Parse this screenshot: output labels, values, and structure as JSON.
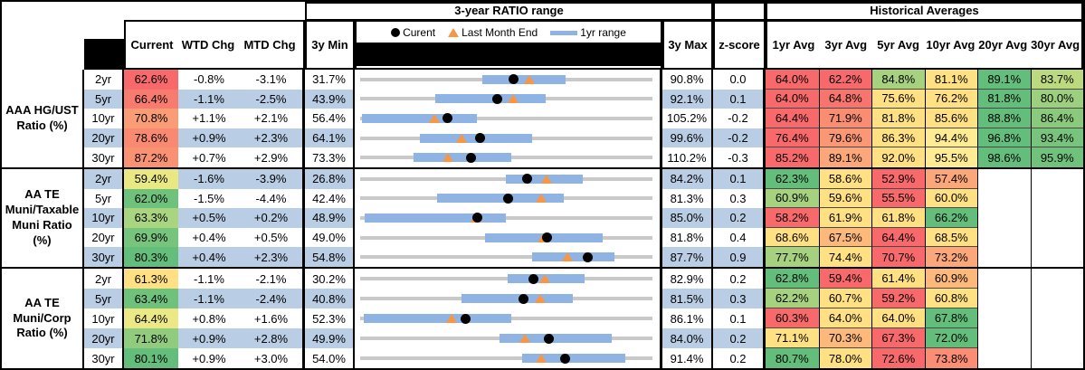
{
  "title_bars": {
    "range": "3-year RATIO range",
    "historical": "Historical Averages"
  },
  "columns": {
    "value": [
      "Current",
      "WTD Chg",
      "MTD Chg"
    ],
    "min": "3y Min",
    "max": "3y Max",
    "zscore": "z-score",
    "avgs": [
      "1yr Avg",
      "3yr Avg",
      "5yr Avg",
      "10yr Avg",
      "20yr Avg",
      "30yr Avg"
    ]
  },
  "legend": {
    "current": "Curent",
    "last_month": "Last Month End",
    "range": "1yr range"
  },
  "colors": {
    "stripe_blue": "#B9CDE5",
    "range_bar_blue": "#8FB4E3",
    "baseline_gray": "#C9C9C9",
    "triangle_orange": "#F79646",
    "dot_black": "#000000",
    "scale_red": "#F8696B",
    "scale_yellow": "#FFE083",
    "scale_green": "#63BE7B"
  },
  "groups": [
    {
      "label": "AAA HG/UST Ratio (%)",
      "rows": [
        {
          "tenor": "2yr",
          "current": {
            "text": "62.6%",
            "color": "#F8696B"
          },
          "wtd": "-0.8%",
          "mtd": "-3.1%",
          "min": "31.7%",
          "max": "90.8%",
          "z": "0.0",
          "avgs": [
            {
              "text": "64.0%",
              "color": "#F8696B"
            },
            {
              "text": "62.2%",
              "color": "#F8696B"
            },
            {
              "text": "84.8%",
              "color": "#A6D17F"
            },
            {
              "text": "81.1%",
              "color": "#FFE083"
            },
            {
              "text": "89.1%",
              "color": "#63BE7B"
            },
            {
              "text": "83.7%",
              "color": "#BCD97F"
            }
          ]
        },
        {
          "tenor": "5yr",
          "current": {
            "text": "66.4%",
            "color": "#F87B6F"
          },
          "wtd": "-1.1%",
          "mtd": "-2.5%",
          "min": "43.9%",
          "max": "92.1%",
          "z": "0.1",
          "avgs": [
            {
              "text": "64.0%",
              "color": "#F8696B"
            },
            {
              "text": "64.8%",
              "color": "#F8746E"
            },
            {
              "text": "75.6%",
              "color": "#FFE083"
            },
            {
              "text": "76.2%",
              "color": "#FFE083"
            },
            {
              "text": "81.8%",
              "color": "#63BE7B"
            },
            {
              "text": "80.0%",
              "color": "#9DD07E"
            }
          ]
        },
        {
          "tenor": "10yr",
          "current": {
            "text": "70.8%",
            "color": "#FA9C76"
          },
          "wtd": "+1.1%",
          "mtd": "+2.1%",
          "min": "56.4%",
          "max": "105.2%",
          "z": "-0.2",
          "avgs": [
            {
              "text": "64.4%",
              "color": "#F8696B"
            },
            {
              "text": "71.9%",
              "color": "#F98D72"
            },
            {
              "text": "81.8%",
              "color": "#FFE083"
            },
            {
              "text": "85.6%",
              "color": "#FFE083"
            },
            {
              "text": "88.8%",
              "color": "#63BE7B"
            },
            {
              "text": "86.4%",
              "color": "#8BCA7D"
            }
          ]
        },
        {
          "tenor": "20yr",
          "current": {
            "text": "78.6%",
            "color": "#F98A71"
          },
          "wtd": "+0.9%",
          "mtd": "+2.3%",
          "min": "64.1%",
          "max": "99.6%",
          "z": "-0.2",
          "avgs": [
            {
              "text": "76.4%",
              "color": "#F8696B"
            },
            {
              "text": "79.6%",
              "color": "#FA9876"
            },
            {
              "text": "86.3%",
              "color": "#FFE083"
            },
            {
              "text": "94.4%",
              "color": "#FFEB94"
            },
            {
              "text": "96.8%",
              "color": "#63BE7B"
            },
            {
              "text": "93.4%",
              "color": "#78C47C"
            }
          ]
        },
        {
          "tenor": "30yr",
          "current": {
            "text": "87.2%",
            "color": "#F99173"
          },
          "wtd": "+0.7%",
          "mtd": "+2.9%",
          "min": "73.3%",
          "max": "110.2%",
          "z": "-0.3",
          "avgs": [
            {
              "text": "85.2%",
              "color": "#F8696B"
            },
            {
              "text": "89.1%",
              "color": "#FBA77A"
            },
            {
              "text": "92.0%",
              "color": "#FFE083"
            },
            {
              "text": "95.5%",
              "color": "#FFEB94"
            },
            {
              "text": "98.6%",
              "color": "#63BE7B"
            },
            {
              "text": "95.9%",
              "color": "#70C17B"
            }
          ]
        }
      ]
    },
    {
      "label": "AA TE Muni/Taxable Muni Ratio (%)",
      "rows": [
        {
          "tenor": "2yr",
          "current": {
            "text": "59.4%",
            "color": "#E9E883"
          },
          "wtd": "-1.6%",
          "mtd": "-3.9%",
          "min": "26.8%",
          "max": "84.2%",
          "z": "0.1",
          "avgs": [
            {
              "text": "62.3%",
              "color": "#63BE7B"
            },
            {
              "text": "58.6%",
              "color": "#FFE083"
            },
            {
              "text": "52.9%",
              "color": "#F8696B"
            },
            {
              "text": "57.4%",
              "color": "#FBA77A"
            },
            null,
            null
          ]
        },
        {
          "tenor": "5yr",
          "current": {
            "text": "62.0%",
            "color": "#6EC27C"
          },
          "wtd": "-1.5%",
          "mtd": "-4.4%",
          "min": "42.4%",
          "max": "81.3%",
          "z": "0.3",
          "avgs": [
            {
              "text": "60.9%",
              "color": "#A6D17F"
            },
            {
              "text": "59.6%",
              "color": "#FFE083"
            },
            {
              "text": "55.5%",
              "color": "#F8696B"
            },
            {
              "text": "60.0%",
              "color": "#FFE083"
            },
            null,
            null
          ]
        },
        {
          "tenor": "10yr",
          "current": {
            "text": "63.3%",
            "color": "#AAD580"
          },
          "wtd": "+0.5%",
          "mtd": "+0.2%",
          "min": "48.9%",
          "max": "85.0%",
          "z": "0.2",
          "avgs": [
            {
              "text": "58.2%",
              "color": "#F8696B"
            },
            {
              "text": "61.9%",
              "color": "#FFE083"
            },
            {
              "text": "61.8%",
              "color": "#FFE083"
            },
            {
              "text": "66.2%",
              "color": "#63BE7B"
            },
            null,
            null
          ]
        },
        {
          "tenor": "20yr",
          "current": {
            "text": "69.9%",
            "color": "#77C47D"
          },
          "wtd": "+0.4%",
          "mtd": "+0.5%",
          "min": "49.0%",
          "max": "81.8%",
          "z": "0.4",
          "avgs": [
            {
              "text": "68.6%",
              "color": "#FFE083"
            },
            {
              "text": "67.5%",
              "color": "#FCB97B"
            },
            {
              "text": "64.4%",
              "color": "#F8696B"
            },
            {
              "text": "68.5%",
              "color": "#FFE083"
            },
            null,
            null
          ]
        },
        {
          "tenor": "30yr",
          "current": {
            "text": "80.3%",
            "color": "#63BE7B"
          },
          "wtd": "+0.4%",
          "mtd": "+2.3%",
          "min": "54.8%",
          "max": "87.7%",
          "z": "0.9",
          "avgs": [
            {
              "text": "77.7%",
              "color": "#A6D17F"
            },
            {
              "text": "74.4%",
              "color": "#FFE083"
            },
            {
              "text": "70.7%",
              "color": "#F8696B"
            },
            {
              "text": "73.2%",
              "color": "#FBA77A"
            },
            null,
            null
          ]
        }
      ]
    },
    {
      "label": "AA TE Muni/Corp Ratio (%)",
      "rows": [
        {
          "tenor": "2yr",
          "current": {
            "text": "61.3%",
            "color": "#FFE083"
          },
          "wtd": "-1.1%",
          "mtd": "-2.1%",
          "min": "30.2%",
          "max": "82.9%",
          "z": "0.2",
          "avgs": [
            {
              "text": "62.8%",
              "color": "#63BE7B"
            },
            {
              "text": "59.4%",
              "color": "#F8696B"
            },
            {
              "text": "61.4%",
              "color": "#FFE083"
            },
            {
              "text": "60.9%",
              "color": "#FCB97B"
            },
            null,
            null
          ]
        },
        {
          "tenor": "5yr",
          "current": {
            "text": "63.4%",
            "color": "#6EC27C"
          },
          "wtd": "-1.1%",
          "mtd": "-2.4%",
          "min": "40.8%",
          "max": "81.5%",
          "z": "0.3",
          "avgs": [
            {
              "text": "62.2%",
              "color": "#A6D17F"
            },
            {
              "text": "60.7%",
              "color": "#FFE083"
            },
            {
              "text": "59.2%",
              "color": "#F8696B"
            },
            {
              "text": "60.8%",
              "color": "#FFE083"
            },
            null,
            null
          ]
        },
        {
          "tenor": "10yr",
          "current": {
            "text": "64.4%",
            "color": "#EDE886"
          },
          "wtd": "+0.8%",
          "mtd": "+1.6%",
          "min": "52.3%",
          "max": "86.1%",
          "z": "0.1",
          "avgs": [
            {
              "text": "60.3%",
              "color": "#F8696B"
            },
            {
              "text": "64.0%",
              "color": "#FFE083"
            },
            {
              "text": "64.0%",
              "color": "#FFE083"
            },
            {
              "text": "67.8%",
              "color": "#63BE7B"
            },
            null,
            null
          ]
        },
        {
          "tenor": "20yr",
          "current": {
            "text": "71.8%",
            "color": "#90CB7E"
          },
          "wtd": "+0.9%",
          "mtd": "+2.8%",
          "min": "49.9%",
          "max": "84.0%",
          "z": "0.2",
          "avgs": [
            {
              "text": "71.1%",
              "color": "#FFE083"
            },
            {
              "text": "70.3%",
              "color": "#FCB97B"
            },
            {
              "text": "67.3%",
              "color": "#F8696B"
            },
            {
              "text": "72.0%",
              "color": "#63BE7B"
            },
            null,
            null
          ]
        },
        {
          "tenor": "30yr",
          "current": {
            "text": "80.1%",
            "color": "#63BE7B"
          },
          "wtd": "+0.9%",
          "mtd": "+3.0%",
          "min": "54.0%",
          "max": "91.4%",
          "z": "0.2",
          "avgs": [
            {
              "text": "80.7%",
              "color": "#63BE7B"
            },
            {
              "text": "78.0%",
              "color": "#FFE083"
            },
            {
              "text": "72.6%",
              "color": "#F8696B"
            },
            {
              "text": "73.8%",
              "color": "#FA8D74"
            },
            null,
            null
          ]
        }
      ]
    }
  ],
  "chart_data": {
    "type": "range_dot_plot",
    "title": "3-year RATIO range",
    "legend": [
      "Curent",
      "Last Month End",
      "1yr range"
    ],
    "note": "Each row scaled from its 3y Min to 3y Max; dot = current, triangle = last month end, blue bar = 1yr range, values in %",
    "series": [
      {
        "group": "AAA HG/UST Ratio (%)",
        "rows": [
          {
            "tenor": "2yr",
            "min3y": 31.7,
            "max3y": 90.8,
            "current": 62.6,
            "last_month_end": 65.7,
            "range1yr": [
              56.2,
              73.1
            ]
          },
          {
            "tenor": "5yr",
            "min3y": 43.9,
            "max3y": 92.1,
            "current": 66.4,
            "last_month_end": 68.9,
            "range1yr": [
              56.2,
              74.3
            ]
          },
          {
            "tenor": "10yr",
            "min3y": 56.4,
            "max3y": 105.2,
            "current": 70.8,
            "last_month_end": 68.7,
            "range1yr": [
              56.6,
              75.7
            ]
          },
          {
            "tenor": "20yr",
            "min3y": 64.1,
            "max3y": 99.6,
            "current": 78.6,
            "last_month_end": 76.3,
            "range1yr": [
              71.2,
              84.9
            ]
          },
          {
            "tenor": "30yr",
            "min3y": 73.3,
            "max3y": 110.2,
            "current": 87.2,
            "last_month_end": 84.3,
            "range1yr": [
              79.9,
              92.3
            ]
          }
        ]
      },
      {
        "group": "AA TE Muni/Taxable Muni Ratio (%)",
        "rows": [
          {
            "tenor": "2yr",
            "min3y": 26.8,
            "max3y": 84.2,
            "current": 59.4,
            "last_month_end": 63.3,
            "range1yr": [
              55.2,
              70.4
            ]
          },
          {
            "tenor": "5yr",
            "min3y": 42.4,
            "max3y": 81.3,
            "current": 62.0,
            "last_month_end": 66.4,
            "range1yr": [
              52.5,
              69.4
            ]
          },
          {
            "tenor": "10yr",
            "min3y": 48.9,
            "max3y": 85.0,
            "current": 63.3,
            "last_month_end": 63.1,
            "range1yr": [
              49.4,
              66.8
            ]
          },
          {
            "tenor": "20yr",
            "min3y": 49.0,
            "max3y": 81.8,
            "current": 69.9,
            "last_month_end": 69.4,
            "range1yr": [
              62.9,
              76.1
            ]
          },
          {
            "tenor": "30yr",
            "min3y": 54.8,
            "max3y": 87.7,
            "current": 80.3,
            "last_month_end": 78.0,
            "range1yr": [
              74.0,
              83.3
            ]
          }
        ]
      },
      {
        "group": "AA TE Muni/Corp Ratio (%)",
        "rows": [
          {
            "tenor": "2yr",
            "min3y": 30.2,
            "max3y": 82.9,
            "current": 61.3,
            "last_month_end": 63.4,
            "range1yr": [
              56.6,
              70.5
            ]
          },
          {
            "tenor": "5yr",
            "min3y": 40.8,
            "max3y": 81.5,
            "current": 63.4,
            "last_month_end": 65.8,
            "range1yr": [
              54.8,
              70.3
            ]
          },
          {
            "tenor": "10yr",
            "min3y": 52.3,
            "max3y": 86.1,
            "current": 64.4,
            "last_month_end": 62.8,
            "range1yr": [
              52.6,
              69.7
            ]
          },
          {
            "tenor": "20yr",
            "min3y": 49.9,
            "max3y": 84.0,
            "current": 71.8,
            "last_month_end": 69.0,
            "range1yr": [
              66.1,
              79.1
            ]
          },
          {
            "tenor": "30yr",
            "min3y": 54.0,
            "max3y": 91.4,
            "current": 80.1,
            "last_month_end": 77.1,
            "range1yr": [
              74.6,
              87.8
            ]
          }
        ]
      }
    ]
  }
}
